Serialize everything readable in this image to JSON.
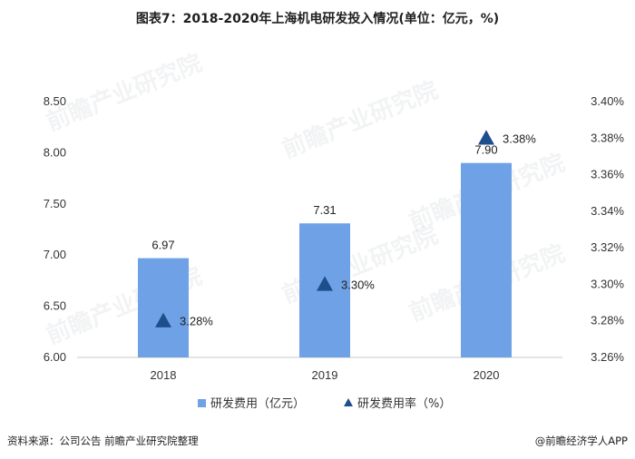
{
  "title": "图表7：2018-2020年上海机电研发投入情况(单位：亿元，%)",
  "chart_data": {
    "type": "bar",
    "title": "图表7：2018-2020年上海机电研发投入情况(单位：亿元，%)",
    "categories": [
      "2018",
      "2019",
      "2020"
    ],
    "series": [
      {
        "name": "研发费用（亿元）",
        "type": "bar",
        "axis": "left",
        "values": [
          6.97,
          7.31,
          7.9
        ],
        "labels": [
          "6.97",
          "7.31",
          "7.90"
        ],
        "color": "#6fa1e6"
      },
      {
        "name": "研发费用率（%）",
        "type": "marker",
        "marker": "triangle",
        "axis": "right",
        "values": [
          3.28,
          3.3,
          3.38
        ],
        "labels": [
          "3.28%",
          "3.30%",
          "3.38%"
        ],
        "color": "#1f4e8c"
      }
    ],
    "y_left": {
      "ylim": [
        6.0,
        8.5
      ],
      "ticks": [
        6.0,
        6.5,
        7.0,
        7.5,
        8.0,
        8.5
      ],
      "tick_labels": [
        "6.00",
        "6.50",
        "7.00",
        "7.50",
        "8.00",
        "8.50"
      ]
    },
    "y_right": {
      "ylim": [
        3.26,
        3.4
      ],
      "ticks": [
        3.26,
        3.28,
        3.3,
        3.32,
        3.34,
        3.36,
        3.38,
        3.4
      ],
      "tick_labels": [
        "3.26%",
        "3.28%",
        "3.30%",
        "3.32%",
        "3.34%",
        "3.36%",
        "3.38%",
        "3.40%"
      ]
    },
    "legend_position": "bottom-center",
    "grid": false
  },
  "footer": {
    "source": "资料来源：公司公告 前瞻产业研究院整理",
    "brand": "@前瞻经济学人APP"
  },
  "watermark": {
    "text": "前瞻产业研究院"
  }
}
